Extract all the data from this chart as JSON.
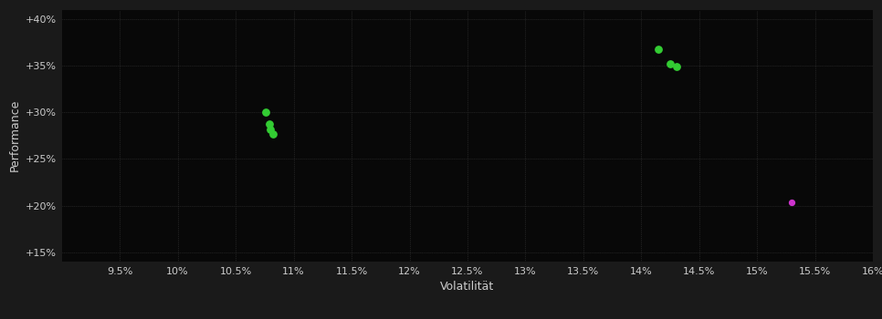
{
  "background_color": "#1a1a1a",
  "plot_bg_color": "#080808",
  "xlabel": "Volatilität",
  "ylabel": "Performance",
  "xlim": [
    0.09,
    0.16
  ],
  "ylim": [
    0.14,
    0.41
  ],
  "xticks": [
    0.095,
    0.1,
    0.105,
    0.11,
    0.115,
    0.12,
    0.125,
    0.13,
    0.135,
    0.14,
    0.145,
    0.15,
    0.155,
    0.16
  ],
  "xtick_labels": [
    "9.5%",
    "10%",
    "10.5%",
    "11%",
    "11.5%",
    "12%",
    "12.5%",
    "13%",
    "13.5%",
    "14%",
    "14.5%",
    "15%",
    "15.5%",
    "16%"
  ],
  "yticks": [
    0.15,
    0.2,
    0.25,
    0.3,
    0.35,
    0.4
  ],
  "ytick_labels": [
    "+15%",
    "+20%",
    "+25%",
    "+30%",
    "+35%",
    "+40%"
  ],
  "green_points": [
    [
      0.1076,
      0.3
    ],
    [
      0.1079,
      0.287
    ],
    [
      0.108,
      0.282
    ],
    [
      0.1082,
      0.277
    ],
    [
      0.1415,
      0.368
    ],
    [
      0.1425,
      0.352
    ],
    [
      0.143,
      0.349
    ]
  ],
  "magenta_points": [
    [
      0.153,
      0.203
    ]
  ],
  "green_color": "#33cc33",
  "magenta_color": "#cc33cc",
  "marker_size": 28,
  "magenta_marker_size": 18,
  "text_color": "#cccccc",
  "label_fontsize": 9,
  "tick_fontsize": 8
}
